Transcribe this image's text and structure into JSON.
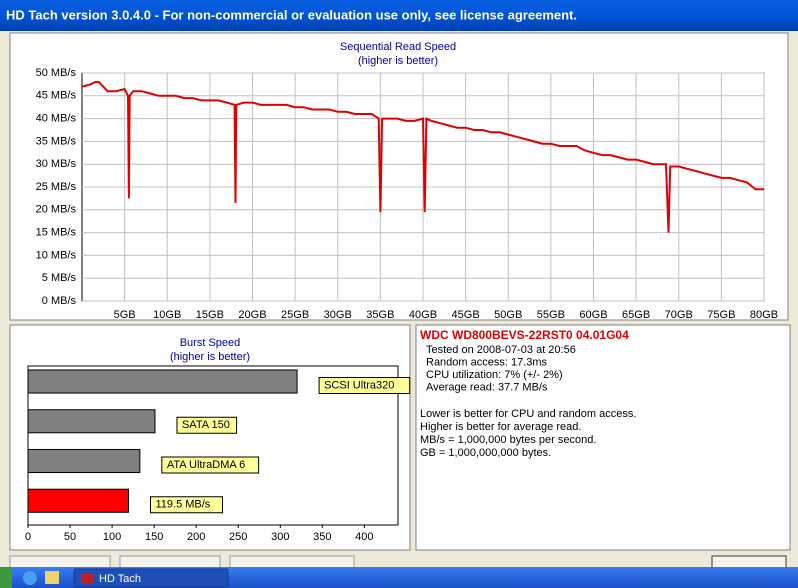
{
  "window": {
    "title": "HD Tach version 3.0.4.0  - For non-commercial or evaluation use only, see license agreement."
  },
  "chart_data": [
    {
      "type": "line",
      "title": "Sequential Read Speed",
      "subtitle": "(higher is better)",
      "color": "#e00000",
      "grid": true,
      "x": [
        0,
        1,
        1.5,
        2,
        2.5,
        3,
        4,
        5,
        5.4,
        5.5,
        5.6,
        6,
        7,
        8,
        9,
        10,
        11,
        12,
        13,
        14,
        15,
        16,
        17,
        17.9,
        18,
        18.1,
        19,
        20,
        21,
        22,
        23,
        24,
        25,
        26,
        27,
        28,
        29,
        30,
        31,
        32,
        33,
        34,
        34.8,
        35,
        35.2,
        36,
        37,
        38,
        39,
        40,
        40.2,
        40.4,
        41,
        42,
        43,
        44,
        45,
        46,
        47,
        48,
        49,
        50,
        51,
        52,
        53,
        54,
        55,
        56,
        57,
        58,
        59,
        60,
        61,
        62,
        63,
        64,
        65,
        66,
        67,
        68.5,
        68.8,
        69,
        70,
        71,
        72,
        73,
        74,
        75,
        76,
        77,
        78,
        79,
        80
      ],
      "values": [
        47,
        47.5,
        48,
        48,
        47,
        46,
        46,
        46.5,
        45,
        22.5,
        45,
        46,
        46,
        45.5,
        45,
        45,
        45,
        44.5,
        44.5,
        44,
        44,
        44,
        43.5,
        43,
        21.5,
        43,
        43.5,
        43.5,
        43,
        43,
        43,
        43,
        42.5,
        42.5,
        42,
        42,
        42,
        41.5,
        41.5,
        41,
        41,
        41,
        40,
        19.5,
        40,
        40,
        40,
        39.5,
        39.5,
        40,
        19.5,
        40,
        39.5,
        39,
        38.5,
        38,
        38,
        37.5,
        37.5,
        37,
        37,
        36.5,
        36,
        35.5,
        35,
        34.5,
        34.5,
        34,
        34,
        34,
        33,
        32.5,
        32,
        32,
        31.5,
        31,
        31,
        30.5,
        30,
        30,
        15,
        29.5,
        29.5,
        29,
        28.5,
        28,
        27.5,
        27,
        27,
        26.5,
        26,
        24.5,
        24.5
      ],
      "xlim": [
        0,
        80
      ],
      "xticks": [
        {
          "value": 5,
          "label": "5GB"
        },
        {
          "value": 10,
          "label": "10GB"
        },
        {
          "value": 15,
          "label": "15GB"
        },
        {
          "value": 20,
          "label": "20GB"
        },
        {
          "value": 25,
          "label": "25GB"
        },
        {
          "value": 30,
          "label": "30GB"
        },
        {
          "value": 35,
          "label": "35GB"
        },
        {
          "value": 40,
          "label": "40GB"
        },
        {
          "value": 45,
          "label": "45GB"
        },
        {
          "value": 50,
          "label": "50GB"
        },
        {
          "value": 55,
          "label": "55GB"
        },
        {
          "value": 60,
          "label": "60GB"
        },
        {
          "value": 65,
          "label": "65GB"
        },
        {
          "value": 70,
          "label": "70GB"
        },
        {
          "value": 75,
          "label": "75GB"
        },
        {
          "value": 80,
          "label": "80GB"
        }
      ],
      "ylim": [
        0,
        50
      ],
      "yticks": [
        {
          "value": 0,
          "label": "0 MB/s"
        },
        {
          "value": 5,
          "label": "5 MB/s"
        },
        {
          "value": 10,
          "label": "10 MB/s"
        },
        {
          "value": 15,
          "label": "15 MB/s"
        },
        {
          "value": 20,
          "label": "20 MB/s"
        },
        {
          "value": 25,
          "label": "25 MB/s"
        },
        {
          "value": 30,
          "label": "30 MB/s"
        },
        {
          "value": 35,
          "label": "35 MB/s"
        },
        {
          "value": 40,
          "label": "40 MB/s"
        },
        {
          "value": 45,
          "label": "45 MB/s"
        },
        {
          "value": 50,
          "label": "50 MB/s"
        }
      ]
    },
    {
      "type": "hbar",
      "title": "Burst Speed",
      "subtitle": "(higher is better)",
      "categories": [
        "SCSI Ultra320",
        "SATA 150",
        "ATA UltraDMA 6",
        null
      ],
      "values": [
        320,
        151,
        133,
        119.5
      ],
      "value_labels": [
        null,
        null,
        null,
        "119.5 MB/s"
      ],
      "colors": [
        "#808080",
        "#808080",
        "#808080",
        "#ff0000"
      ],
      "xlim": [
        0,
        440
      ],
      "xticks": [
        0,
        50,
        100,
        150,
        200,
        250,
        300,
        350,
        400
      ]
    }
  ],
  "info": {
    "drive": "WDC WD800BEVS-22RST0 04.01G04",
    "stats": [
      "Tested on 2008-07-03 at 20:56",
      "Random access: 17.3ms",
      "CPU utilization: 7% (+/- 2%)",
      "Average read: 37.7 MB/s"
    ],
    "notes": [
      "Lower is better for CPU and random access.",
      "Higher is better for average read.",
      "MB/s = 1,000,000 bytes per second.",
      "GB = 1,000,000,000 bytes."
    ]
  },
  "taskbar": {
    "task": "HD Tach"
  }
}
